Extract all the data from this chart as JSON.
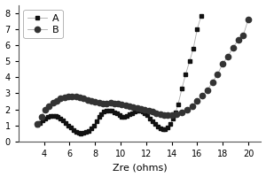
{
  "title": "",
  "xlabel": "Zre (ohms)",
  "ylabel": "",
  "xlim": [
    2,
    21
  ],
  "ylim": [
    0,
    8.5
  ],
  "xticks": [
    4,
    6,
    8,
    10,
    12,
    14,
    16,
    18,
    20
  ],
  "yticks": [
    0,
    1,
    2,
    3,
    4,
    5,
    6,
    7,
    8
  ],
  "A_x": [
    3.5,
    3.7,
    3.9,
    4.1,
    4.3,
    4.5,
    4.7,
    4.9,
    5.1,
    5.3,
    5.5,
    5.7,
    5.9,
    6.1,
    6.3,
    6.5,
    6.7,
    6.9,
    7.1,
    7.3,
    7.5,
    7.7,
    7.9,
    8.1,
    8.3,
    8.5,
    8.7,
    8.9,
    9.1,
    9.3,
    9.5,
    9.7,
    9.9,
    10.1,
    10.3,
    10.5,
    10.7,
    10.9,
    11.1,
    11.3,
    11.5,
    11.7,
    11.9,
    12.1,
    12.3,
    12.5,
    12.7,
    12.9,
    13.1,
    13.3,
    13.5,
    13.7,
    13.9,
    14.1,
    14.3,
    14.5,
    14.8,
    15.1,
    15.4,
    15.7,
    16.0,
    16.3
  ],
  "A_y": [
    1.05,
    1.15,
    1.3,
    1.42,
    1.52,
    1.58,
    1.6,
    1.58,
    1.52,
    1.42,
    1.3,
    1.15,
    1.0,
    0.85,
    0.72,
    0.62,
    0.55,
    0.5,
    0.52,
    0.58,
    0.68,
    0.82,
    1.0,
    1.25,
    1.52,
    1.72,
    1.85,
    1.92,
    1.93,
    1.9,
    1.83,
    1.73,
    1.62,
    1.55,
    1.55,
    1.6,
    1.68,
    1.78,
    1.88,
    1.93,
    1.92,
    1.85,
    1.75,
    1.62,
    1.45,
    1.28,
    1.12,
    0.95,
    0.82,
    0.75,
    0.78,
    0.9,
    1.1,
    1.4,
    1.8,
    2.3,
    3.3,
    4.2,
    5.0,
    5.8,
    7.0,
    7.8
  ],
  "B_x": [
    3.5,
    3.8,
    4.1,
    4.4,
    4.7,
    5.0,
    5.3,
    5.6,
    5.9,
    6.2,
    6.5,
    6.8,
    7.1,
    7.4,
    7.7,
    8.0,
    8.3,
    8.6,
    8.9,
    9.2,
    9.5,
    9.8,
    10.1,
    10.4,
    10.7,
    11.0,
    11.3,
    11.6,
    11.9,
    12.2,
    12.5,
    12.8,
    13.1,
    13.4,
    13.7,
    14.0,
    14.4,
    14.8,
    15.2,
    15.6,
    16.0,
    16.4,
    16.8,
    17.2,
    17.6,
    18.0,
    18.4,
    18.8,
    19.2,
    19.6,
    20.0
  ],
  "B_y": [
    1.1,
    1.55,
    2.0,
    2.2,
    2.42,
    2.55,
    2.68,
    2.75,
    2.8,
    2.82,
    2.8,
    2.75,
    2.68,
    2.6,
    2.52,
    2.45,
    2.4,
    2.38,
    2.38,
    2.4,
    2.38,
    2.35,
    2.3,
    2.25,
    2.2,
    2.15,
    2.1,
    2.05,
    2.0,
    1.92,
    1.85,
    1.78,
    1.72,
    1.67,
    1.63,
    1.62,
    1.68,
    1.8,
    1.98,
    2.22,
    2.52,
    2.88,
    3.2,
    3.7,
    4.2,
    4.85,
    5.3,
    5.85,
    6.3,
    6.6,
    7.6
  ],
  "line_color": "#aaaaaa",
  "marker_color_A": "#111111",
  "marker_color_B": "#333333",
  "bg_color": "#ffffff",
  "legend_labels": [
    "A",
    "B"
  ],
  "figsize": [
    3.0,
    2.0
  ],
  "dpi": 100
}
